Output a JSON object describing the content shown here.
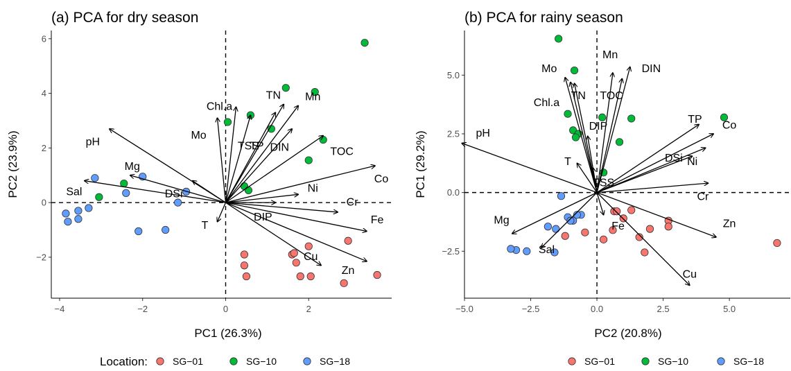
{
  "colors": {
    "SG-01": "#F8766D",
    "SG-10": "#00BA38",
    "SG-18": "#619CFF"
  },
  "legend": {
    "left": {
      "title": "Location:",
      "items": [
        "SG−01",
        "SG−10",
        "SG−18"
      ]
    },
    "right": {
      "title": "",
      "items": [
        "SG−01",
        "SG−10",
        "SG−18"
      ]
    }
  },
  "chart_data": [
    {
      "type": "scatter",
      "title": "(a) PCA for dry season",
      "xlabel": "PC1 (26.3%)",
      "ylabel": "PC2 (23.9%)",
      "xlim": [
        -4.2,
        4.0
      ],
      "ylim": [
        -3.5,
        6.3
      ],
      "xticks": [
        -4,
        -2,
        0,
        2
      ],
      "yticks": [
        -2,
        0,
        2,
        4,
        6
      ],
      "xtick_labels": [
        "−4",
        "−2",
        "0",
        "2"
      ],
      "ytick_labels": [
        "−2",
        "0",
        "2",
        "4",
        "6"
      ],
      "grid": false,
      "reference_lines": {
        "x": 0,
        "y": 0,
        "style": "dashed"
      },
      "series": [
        {
          "name": "SG−01",
          "color_key": "SG-01",
          "points": [
            [
              1.6,
              -1.9
            ],
            [
              1.65,
              -1.85
            ],
            [
              1.7,
              -2.2
            ],
            [
              1.8,
              -2.7
            ],
            [
              2.0,
              -1.6
            ],
            [
              2.05,
              -2.7
            ],
            [
              2.95,
              -1.4
            ],
            [
              2.85,
              -2.95
            ],
            [
              3.65,
              -2.65
            ],
            [
              0.45,
              -1.9
            ],
            [
              0.45,
              -2.3
            ],
            [
              0.5,
              -2.7
            ]
          ]
        },
        {
          "name": "SG−10",
          "color_key": "SG-10",
          "points": [
            [
              3.35,
              5.85
            ],
            [
              1.45,
              4.2
            ],
            [
              2.15,
              4.05
            ],
            [
              0.6,
              3.2
            ],
            [
              0.05,
              2.95
            ],
            [
              1.1,
              2.7
            ],
            [
              2.35,
              2.3
            ],
            [
              2.0,
              1.55
            ],
            [
              0.45,
              0.6
            ],
            [
              0.55,
              0.45
            ],
            [
              -2.45,
              0.7
            ],
            [
              -3.05,
              0.2
            ]
          ]
        },
        {
          "name": "SG−18",
          "color_key": "SG-18",
          "points": [
            [
              -3.15,
              0.9
            ],
            [
              -2.0,
              0.95
            ],
            [
              -0.95,
              0.4
            ],
            [
              -2.4,
              0.35
            ],
            [
              -1.15,
              0.0
            ],
            [
              -3.3,
              -0.2
            ],
            [
              -3.55,
              -0.3
            ],
            [
              -3.85,
              -0.4
            ],
            [
              -3.8,
              -0.7
            ],
            [
              -3.55,
              -0.6
            ],
            [
              -2.1,
              -1.05
            ],
            [
              -1.45,
              -1.0
            ]
          ]
        }
      ],
      "loadings": [
        {
          "label": "pH",
          "x": -2.8,
          "y": 2.7,
          "lx": -3.2,
          "ly": 2.2
        },
        {
          "label": "Mg",
          "x": -2.3,
          "y": 1.0,
          "lx": -2.25,
          "ly": 1.3
        },
        {
          "label": "Sal",
          "x": -3.4,
          "y": 0.8,
          "lx": -3.65,
          "ly": 0.38
        },
        {
          "label": "DSi",
          "x": -0.8,
          "y": 0.8,
          "lx": -1.25,
          "ly": 0.3
        },
        {
          "label": "Mo",
          "x": -0.2,
          "y": 3.1,
          "lx": -0.65,
          "ly": 2.45
        },
        {
          "label": "Chl.a",
          "x": 0.25,
          "y": 3.5,
          "lx": -0.15,
          "ly": 3.5
        },
        {
          "label": "TSS",
          "x": 0.6,
          "y": 3.2,
          "lx": 0.55,
          "ly": 2.05
        },
        {
          "label": "TP",
          "x": 1.2,
          "y": 3.3,
          "lx": 0.75,
          "ly": 2.05
        },
        {
          "label": "TN",
          "x": 1.4,
          "y": 3.6,
          "lx": 1.15,
          "ly": 3.9
        },
        {
          "label": "Mn",
          "x": 1.75,
          "y": 3.55,
          "lx": 2.1,
          "ly": 3.85
        },
        {
          "label": "DIN",
          "x": 1.6,
          "y": 2.7,
          "lx": 1.3,
          "ly": 2.0
        },
        {
          "label": "TOC",
          "x": 2.35,
          "y": 2.45,
          "lx": 2.8,
          "ly": 1.85
        },
        {
          "label": "Co",
          "x": 3.6,
          "y": 1.35,
          "lx": 3.75,
          "ly": 0.85
        },
        {
          "label": "Ni",
          "x": 1.75,
          "y": 0.3,
          "lx": 2.1,
          "ly": 0.5
        },
        {
          "label": "Cr",
          "x": 2.7,
          "y": -0.35,
          "lx": 3.05,
          "ly": 0.0
        },
        {
          "label": "Fe",
          "x": 3.4,
          "y": -1.05,
          "lx": 3.65,
          "ly": -0.65
        },
        {
          "label": "Cu",
          "x": 2.3,
          "y": -2.3,
          "lx": 2.05,
          "ly": -2.0
        },
        {
          "label": "Zn",
          "x": 3.4,
          "y": -2.15,
          "lx": 2.95,
          "ly": -2.5
        },
        {
          "label": "DIP",
          "x": 1.2,
          "y": 0.0,
          "lx": 0.9,
          "ly": -0.55
        },
        {
          "label": "T",
          "x": -0.2,
          "y": -0.7,
          "lx": -0.5,
          "ly": -0.85
        }
      ]
    },
    {
      "type": "scatter",
      "title": "(b) PCA for rainy season",
      "xlabel": "PC2 (20.8%)",
      "ylabel": "PC1 (29.2%)",
      "xlim": [
        -5.0,
        7.3
      ],
      "ylim": [
        -4.5,
        6.9
      ],
      "xticks": [
        -5,
        -2.5,
        0,
        2.5,
        5
      ],
      "yticks": [
        -2.5,
        0,
        2.5,
        5
      ],
      "xtick_labels": [
        "−5.0",
        "−2.5",
        "0.0",
        "2.5",
        "5.0"
      ],
      "ytick_labels": [
        "−2.5",
        "0.0",
        "2.5",
        "5.0"
      ],
      "grid": false,
      "reference_lines": {
        "x": 0,
        "y": 0,
        "style": "dashed"
      },
      "series": [
        {
          "name": "SG−01",
          "color_key": "SG-01",
          "points": [
            [
              6.8,
              -2.15
            ],
            [
              2.7,
              -1.2
            ],
            [
              2.7,
              -1.45
            ],
            [
              2.0,
              -1.55
            ],
            [
              1.8,
              -2.55
            ],
            [
              1.6,
              -1.9
            ],
            [
              1.3,
              -0.75
            ],
            [
              1.0,
              -1.1
            ],
            [
              0.65,
              -0.8
            ],
            [
              0.75,
              -0.8
            ],
            [
              0.6,
              -1.6
            ],
            [
              0.25,
              -2.0
            ],
            [
              -0.45,
              -1.7
            ],
            [
              -1.2,
              -1.85
            ]
          ]
        },
        {
          "name": "SG−10",
          "color_key": "SG-10",
          "points": [
            [
              -1.45,
              6.55
            ],
            [
              -0.85,
              5.2
            ],
            [
              4.8,
              3.2
            ],
            [
              1.3,
              3.15
            ],
            [
              0.2,
              3.2
            ],
            [
              -1.1,
              3.35
            ],
            [
              -0.9,
              2.65
            ],
            [
              -0.7,
              2.5
            ],
            [
              -0.8,
              2.35
            ],
            [
              0.85,
              2.15
            ],
            [
              0.25,
              0.85
            ]
          ]
        },
        {
          "name": "SG−18",
          "color_key": "SG-18",
          "points": [
            [
              -1.35,
              -0.15
            ],
            [
              -1.1,
              -1.05
            ],
            [
              -0.9,
              -1.2
            ],
            [
              -0.6,
              -0.95
            ],
            [
              -0.75,
              -0.95
            ],
            [
              -1.0,
              -1.2
            ],
            [
              -1.85,
              -1.45
            ],
            [
              -1.55,
              -1.55
            ],
            [
              -1.6,
              -2.55
            ],
            [
              -2.65,
              -2.5
            ],
            [
              -3.05,
              -2.45
            ],
            [
              -3.25,
              -2.4
            ]
          ]
        }
      ],
      "loadings": [
        {
          "label": "pH",
          "x": -5.1,
          "y": 2.1,
          "lx": -4.3,
          "ly": 2.5
        },
        {
          "label": "Mg",
          "x": -3.2,
          "y": -1.75,
          "lx": -3.6,
          "ly": -1.2
        },
        {
          "label": "Sal",
          "x": -2.1,
          "y": -2.35,
          "lx": -1.9,
          "ly": -2.45
        },
        {
          "label": "Mo",
          "x": -1.2,
          "y": 4.9,
          "lx": -1.8,
          "ly": 5.25
        },
        {
          "label": "Chl.a",
          "x": -1.0,
          "y": 4.7,
          "lx": -1.9,
          "ly": 3.8
        },
        {
          "label": "TN",
          "x": -0.85,
          "y": 4.65,
          "lx": -0.7,
          "ly": 4.1
        },
        {
          "label": "T",
          "x": -0.75,
          "y": 1.25,
          "lx": -1.1,
          "ly": 1.3
        },
        {
          "label": "DIP",
          "x": -0.35,
          "y": 2.4,
          "lx": 0.05,
          "ly": 2.8
        },
        {
          "label": "TSS",
          "x": -0.15,
          "y": 1.05,
          "lx": 0.25,
          "ly": 0.4
        },
        {
          "label": "Mn",
          "x": 0.6,
          "y": 5.1,
          "lx": 0.5,
          "ly": 5.85
        },
        {
          "label": "TOC",
          "x": 0.95,
          "y": 4.85,
          "lx": 0.55,
          "ly": 4.1
        },
        {
          "label": "DIN",
          "x": 1.25,
          "y": 5.35,
          "lx": 2.05,
          "ly": 5.25
        },
        {
          "label": "TP",
          "x": 3.85,
          "y": 2.9,
          "lx": 3.7,
          "ly": 3.1
        },
        {
          "label": "Co",
          "x": 4.4,
          "y": 2.5,
          "lx": 5.0,
          "ly": 2.85
        },
        {
          "label": "DSi",
          "x": 4.1,
          "y": 1.9,
          "lx": 2.9,
          "ly": 1.45
        },
        {
          "label": "Ni",
          "x": 3.6,
          "y": 1.55,
          "lx": 3.6,
          "ly": 1.3
        },
        {
          "label": "Cr",
          "x": 4.2,
          "y": 0.4,
          "lx": 4.0,
          "ly": -0.2
        },
        {
          "label": "Fe",
          "x": 0.25,
          "y": -0.95,
          "lx": 0.8,
          "ly": -1.45
        },
        {
          "label": "Zn",
          "x": 4.5,
          "y": -1.9,
          "lx": 5.0,
          "ly": -1.35
        },
        {
          "label": "Cu",
          "x": 3.5,
          "y": -3.95,
          "lx": 3.5,
          "ly": -3.5
        }
      ]
    }
  ]
}
